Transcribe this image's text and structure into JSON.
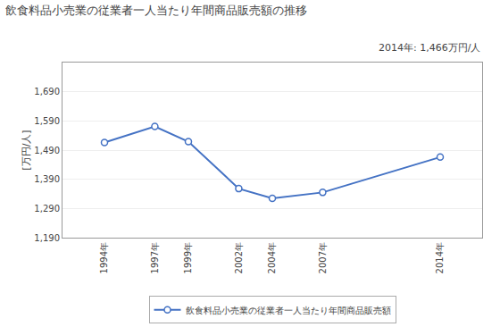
{
  "chart_data": {
    "type": "line",
    "title": "飲食料品小売業の従業者一人当たり年間商品販売額の推移",
    "ylabel": "[万円/人]",
    "annotation": "2014年: 1,466万円/人",
    "x": [
      1994,
      1997,
      1999,
      2002,
      2004,
      2007,
      2014
    ],
    "series": [
      {
        "name": "飲食料品小売業の従業者一人当たり年間商品販売額",
        "color": "#4472C4",
        "marker": "circle",
        "values": [
          1516,
          1571,
          1519,
          1358,
          1325,
          1345,
          1466
        ]
      }
    ],
    "xlim": [
      1991.5,
      2016.5
    ],
    "xticks": [
      {
        "value": 1994,
        "label": "1994年"
      },
      {
        "value": 1997,
        "label": "1997年"
      },
      {
        "value": 1999,
        "label": "1999年"
      },
      {
        "value": 2002,
        "label": "2002年"
      },
      {
        "value": 2004,
        "label": "2004年"
      },
      {
        "value": 2007,
        "label": "2007年"
      },
      {
        "value": 2014,
        "label": "2014年"
      }
    ],
    "ylim": [
      1190,
      1790
    ],
    "yticks": [
      {
        "value": 1190,
        "label": "1,190"
      },
      {
        "value": 1290,
        "label": "1,290"
      },
      {
        "value": 1390,
        "label": "1,390"
      },
      {
        "value": 1490,
        "label": "1,490"
      },
      {
        "value": 1590,
        "label": "1,590"
      },
      {
        "value": 1690,
        "label": "1,690"
      }
    ],
    "grid": true,
    "legend": "bottom"
  }
}
